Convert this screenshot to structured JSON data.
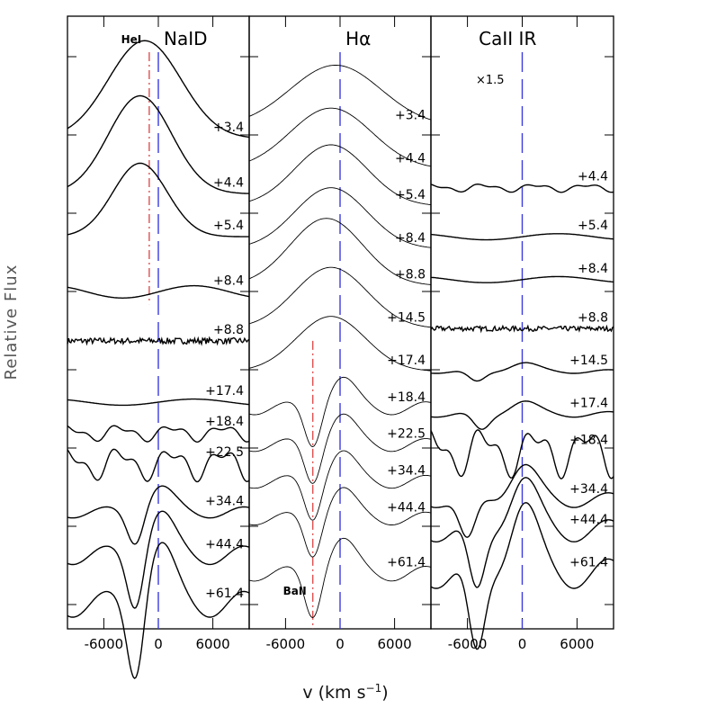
{
  "figure": {
    "ylabel": "Relative Flux",
    "xlabel_main": "v (km s",
    "xlabel_sup": "−1",
    "xlabel_close": ")"
  },
  "chart_data": [
    {
      "type": "line",
      "panel": "NaID",
      "title": "NaID",
      "xlabel": "v (km s−1)",
      "ylabel": "Relative Flux",
      "xlim": [
        -10000,
        10000
      ],
      "xticks": [
        -6000,
        0,
        6000
      ],
      "grid": false,
      "marker_lines": [
        {
          "label": "HeI",
          "v": -1000,
          "color": "#e05050",
          "style": "dash-dot"
        },
        {
          "label": "",
          "v": 0,
          "color": "#3a3ae0",
          "style": "long-dash"
        }
      ],
      "annotations": [],
      "series": [
        {
          "name": "+3.4",
          "offset": 0.8,
          "kind": "broad-emission",
          "peak_v": -1500,
          "width": 4000,
          "amp": 0.16
        },
        {
          "name": "+4.4",
          "offset": 0.71,
          "kind": "broad-emission",
          "peak_v": -2000,
          "width": 3500,
          "amp": 0.16
        },
        {
          "name": "+5.4",
          "offset": 0.64,
          "kind": "broad-emission",
          "peak_v": -2000,
          "width": 3000,
          "amp": 0.12
        },
        {
          "name": "+8.4",
          "offset": 0.55,
          "kind": "flat",
          "amp": 0.01
        },
        {
          "name": "+8.8",
          "offset": 0.47,
          "kind": "noisy-flat",
          "amp": 0.005
        },
        {
          "name": "+17.4",
          "offset": 0.37,
          "kind": "flat",
          "amp": 0.005
        },
        {
          "name": "+18.4",
          "offset": 0.32,
          "kind": "wavy",
          "amp": 0.01
        },
        {
          "name": "+22.5",
          "offset": 0.27,
          "kind": "wavy",
          "amp": 0.02
        },
        {
          "name": "+34.4",
          "offset": 0.19,
          "kind": "p-cygni",
          "abs_v": -2500,
          "amp": 0.06
        },
        {
          "name": "+44.4",
          "offset": 0.12,
          "kind": "p-cygni",
          "abs_v": -2500,
          "amp": 0.1
        },
        {
          "name": "+61.4",
          "offset": 0.04,
          "kind": "p-cygni",
          "abs_v": -2500,
          "amp": 0.14
        }
      ]
    },
    {
      "type": "line",
      "panel": "Halpha",
      "title": "Hα",
      "xlabel": "v (km s−1)",
      "xlim": [
        -10000,
        10000
      ],
      "xticks": [
        -6000,
        0,
        6000
      ],
      "grid": false,
      "marker_lines": [
        {
          "label": "",
          "v": 0,
          "color": "#3a3ae0",
          "style": "long-dash"
        },
        {
          "label": "BaII",
          "v": -3000,
          "color": "#e05050",
          "style": "dash-dot"
        }
      ],
      "annotations": [],
      "series": [
        {
          "name": "+3.4",
          "offset": 0.82,
          "kind": "broad-emission",
          "peak_v": -500,
          "width": 5000,
          "amp": 0.1
        },
        {
          "name": "+4.4",
          "offset": 0.75,
          "kind": "broad-emission",
          "peak_v": -1000,
          "width": 4500,
          "amp": 0.1
        },
        {
          "name": "+5.4",
          "offset": 0.69,
          "kind": "broad-emission",
          "peak_v": -1000,
          "width": 4000,
          "amp": 0.1
        },
        {
          "name": "+8.4",
          "offset": 0.62,
          "kind": "broad-emission",
          "peak_v": -1000,
          "width": 4000,
          "amp": 0.1
        },
        {
          "name": "+8.8",
          "offset": 0.56,
          "kind": "broad-emission",
          "peak_v": -1500,
          "width": 4000,
          "amp": 0.11
        },
        {
          "name": "+14.5",
          "offset": 0.49,
          "kind": "broad-emission",
          "peak_v": -1000,
          "width": 4000,
          "amp": 0.1
        },
        {
          "name": "+17.4",
          "offset": 0.42,
          "kind": "broad-emission",
          "peak_v": -1000,
          "width": 3800,
          "amp": 0.09
        },
        {
          "name": "+18.4",
          "offset": 0.36,
          "kind": "p-cygni",
          "abs_v": -3000,
          "amp": 0.07
        },
        {
          "name": "+22.5",
          "offset": 0.3,
          "kind": "p-cygni",
          "abs_v": -3000,
          "amp": 0.07
        },
        {
          "name": "+34.4",
          "offset": 0.24,
          "kind": "p-cygni",
          "abs_v": -3000,
          "amp": 0.07
        },
        {
          "name": "+44.4",
          "offset": 0.18,
          "kind": "p-cygni",
          "abs_v": -3000,
          "amp": 0.07
        },
        {
          "name": "+61.4",
          "offset": 0.09,
          "kind": "p-cygni",
          "abs_v": -3000,
          "amp": 0.08
        }
      ]
    },
    {
      "type": "line",
      "panel": "CaII IR",
      "title": "CaII  IR",
      "xlabel": "v (km s−1)",
      "xlim": [
        -10000,
        10000
      ],
      "xticks": [
        -6000,
        0,
        6000
      ],
      "grid": false,
      "marker_lines": [
        {
          "label": "",
          "v": 0,
          "color": "#3a3ae0",
          "style": "long-dash"
        }
      ],
      "annotations": [
        "×1.5"
      ],
      "series": [
        {
          "name": "+4.4",
          "offset": 0.72,
          "kind": "wavy",
          "amp": 0.005
        },
        {
          "name": "+5.4",
          "offset": 0.64,
          "kind": "flat",
          "amp": 0.005
        },
        {
          "name": "+8.4",
          "offset": 0.57,
          "kind": "flat",
          "amp": 0.005
        },
        {
          "name": "+8.8",
          "offset": 0.49,
          "kind": "noisy-flat",
          "amp": 0.004
        },
        {
          "name": "+14.5",
          "offset": 0.42,
          "kind": "p-cygni",
          "abs_v": -5000,
          "amp": 0.02
        },
        {
          "name": "+17.4",
          "offset": 0.35,
          "kind": "p-cygni",
          "abs_v": -4500,
          "amp": 0.03
        },
        {
          "name": "+18.4",
          "offset": 0.29,
          "kind": "wavy",
          "amp": 0.03
        },
        {
          "name": "+34.4",
          "offset": 0.21,
          "kind": "p-cygni",
          "abs_v": -6000,
          "amp": 0.08
        },
        {
          "name": "+44.4",
          "offset": 0.16,
          "kind": "p-cygni",
          "abs_v": -5000,
          "amp": 0.12
        },
        {
          "name": "+61.4",
          "offset": 0.09,
          "kind": "p-cygni",
          "abs_v": -5000,
          "amp": 0.16
        }
      ]
    }
  ]
}
